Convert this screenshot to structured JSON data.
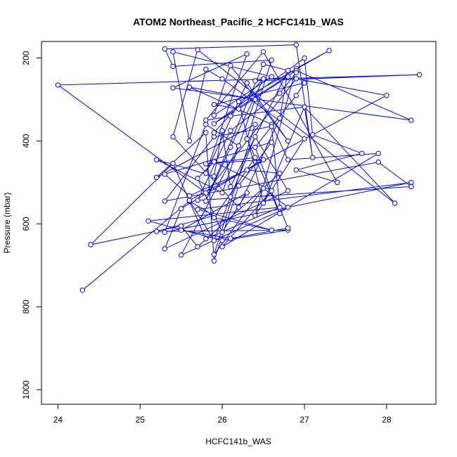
{
  "chart_data": {
    "type": "line",
    "title": "ATOM2 Northeast_Pacific_2 HCFC141b_WAS",
    "xlabel": "HCFC141b_WAS",
    "ylabel": "Pressure (mbar)",
    "xlim": [
      23.8,
      28.6
    ],
    "ylim": [
      1035,
      160
    ],
    "y_reversed": true,
    "x_ticks": [
      24,
      25,
      26,
      27,
      28
    ],
    "y_ticks": [
      200,
      400,
      600,
      800,
      1000
    ],
    "grid": false,
    "legend": "none",
    "marker": "open-circle",
    "color": "#0000ff",
    "series": [
      {
        "x": [
          24.3,
          25.6,
          25.9,
          25.2,
          26.8,
          26.0,
          25.1,
          26.7,
          25.8,
          25.4,
          24.4,
          25.5,
          25.7,
          26.7,
          26.3,
          25.6,
          25.3,
          26.6,
          26.2,
          25.9,
          25.8,
          25.2,
          26.4,
          25.9,
          26.5,
          26.8,
          25.5,
          26.2,
          25.8,
          25.3,
          28.3,
          25.7,
          26.6,
          25.9,
          26.4,
          25.8,
          26.5,
          25.5,
          25.3,
          26.8,
          26.4,
          26.1,
          25.9,
          25.6,
          28.0,
          26.9,
          25.8,
          24.0,
          28.4,
          26.4,
          26.8,
          26.2,
          25.9,
          27.0,
          26.9,
          26.4,
          26.7,
          26.3,
          26.6,
          25.4,
          25.3,
          26.9,
          27.1,
          27.0,
          26.5,
          26.2,
          27.3,
          26.9,
          26.4,
          27.0,
          26.0,
          25.8,
          25.6,
          25.4,
          26.6,
          25.9,
          26.1,
          26.8,
          26.3,
          25.8,
          26.3,
          25.4,
          28.3,
          26.9,
          25.9,
          27.0,
          27.1,
          27.7,
          26.9,
          27.4,
          26.5,
          25.8,
          26.1,
          27.0,
          28.1,
          25.7,
          25.4,
          26.2,
          26.7,
          26.8,
          26.1,
          26.0,
          25.9,
          25.2,
          26.0,
          26.4,
          25.6,
          26.6,
          26.8,
          27.9,
          26.0,
          26.6,
          25.9,
          25.7,
          26.0,
          26.3,
          25.5,
          26.1,
          26.8,
          26.7,
          26.6,
          25.9,
          25.3,
          27.9,
          28.3,
          25.7,
          26.1,
          26.7,
          26.9,
          26.5,
          25.8,
          26.1,
          26.5,
          25.9
        ],
        "y": [
          760,
          545,
          580,
          618,
          615,
          640,
          593,
          560,
          636,
          454,
          650,
          605,
          655,
          478,
          470,
          532,
          480,
          403,
          508,
          689,
          380,
          488,
          360,
          674,
          514,
          560,
          675,
          412,
          360,
          620,
          500,
          565,
          615,
          585,
          440,
          455,
          445,
          563,
          660,
          520,
          390,
          535,
          640,
          543,
          290,
          250,
          525,
          265,
          240,
          255,
          245,
          323,
          312,
          260,
          290,
          415,
          575,
          395,
          205,
          220,
          178,
          168,
          440,
          318,
          550,
          305,
          182,
          225,
          580,
          395,
          250,
          227,
          400,
          185,
          245,
          338,
          218,
          400,
          260,
          478,
          190,
          272,
          350,
          230,
          358,
          200,
          385,
          430,
          470,
          500,
          185,
          350,
          340,
          318,
          550,
          180,
          390,
          560,
          345,
          230,
          510,
          375,
          485,
          445,
          525,
          300,
          270,
          360,
          445,
          430,
          655,
          520,
          450,
          490,
          620,
          525,
          615,
          635,
          610,
          560,
          365,
          390,
          545,
          451,
          510,
          543,
          375,
          285,
          235,
          215,
          545,
          415,
          250,
          380
        ]
      }
    ]
  }
}
